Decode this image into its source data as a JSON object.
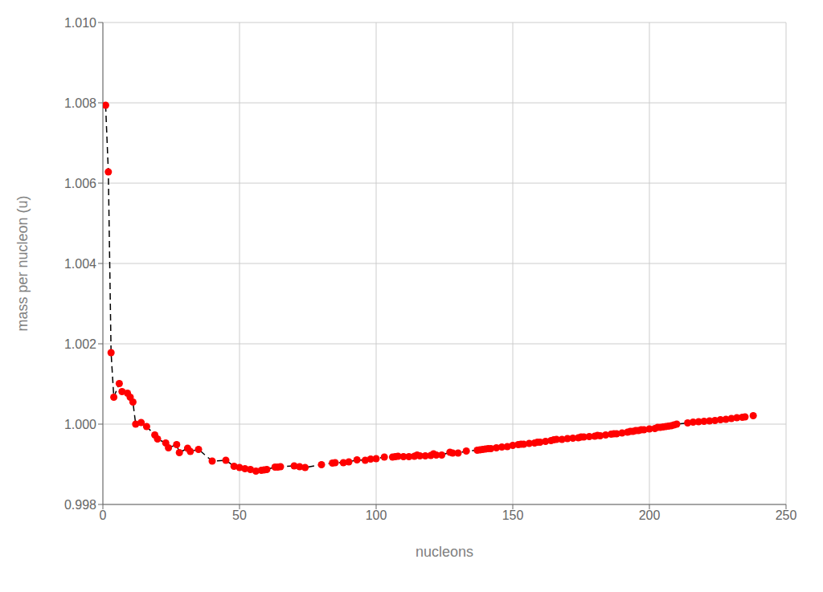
{
  "chart_data": {
    "type": "line",
    "xlabel": "nucleons",
    "ylabel": "mass per nucleon (u)",
    "xlim": [
      0,
      250
    ],
    "ylim": [
      0.998,
      1.01
    ],
    "xticks": [
      0,
      50,
      100,
      150,
      200,
      250
    ],
    "yticks": [
      0.998,
      {
        "value": 1.0,
        "label": "1.000"
      },
      1.002,
      1.004,
      1.006,
      1.008,
      {
        "value": 1.01,
        "label": "1.010"
      }
    ],
    "grid": true,
    "x": [
      1,
      2,
      3,
      4,
      6,
      7,
      9,
      10,
      11,
      12,
      14,
      16,
      19,
      20,
      23,
      24,
      27,
      28,
      31,
      32,
      35,
      40,
      45,
      48,
      50,
      52,
      54,
      56,
      58,
      59,
      60,
      63,
      64,
      65,
      70,
      72,
      74,
      80,
      84,
      85,
      88,
      90,
      93,
      96,
      98,
      100,
      103,
      106,
      107,
      108,
      110,
      112,
      114,
      115,
      116,
      118,
      120,
      121,
      122,
      124,
      127,
      128,
      130,
      133,
      137,
      138,
      139,
      140,
      141,
      142,
      144,
      146,
      148,
      150,
      152,
      153,
      154,
      156,
      158,
      159,
      160,
      162,
      164,
      165,
      166,
      168,
      170,
      172,
      174,
      175,
      176,
      178,
      180,
      181,
      182,
      184,
      186,
      187,
      188,
      190,
      192,
      193,
      194,
      195,
      196,
      197,
      198,
      200,
      202,
      203,
      204,
      205,
      206,
      207,
      208,
      209,
      210,
      214,
      216,
      218,
      220,
      222,
      224,
      226,
      228,
      230,
      232,
      234,
      235,
      238
    ],
    "series": [
      {
        "type": "line",
        "color": "#000000",
        "line_style": "dashed",
        "values": [
          1.00794,
          1.00628,
          1.00178,
          1.00067,
          1.00101,
          1.00081,
          1.00077,
          1.00067,
          1.00055,
          1.0,
          1.00004,
          0.99994,
          0.99973,
          0.99963,
          0.99953,
          0.99941,
          0.99949,
          0.99929,
          0.9994,
          0.99932,
          0.99937,
          0.99908,
          0.9991,
          0.99895,
          0.99892,
          0.99889,
          0.99887,
          0.99883,
          0.99885,
          0.99886,
          0.99887,
          0.99893,
          0.99893,
          0.99894,
          0.99896,
          0.99894,
          0.99892,
          0.99899,
          0.99903,
          0.99904,
          0.99904,
          0.99906,
          0.99911,
          0.9991,
          0.99913,
          0.99914,
          0.99918,
          0.99918,
          0.99919,
          0.9992,
          0.99919,
          0.99919,
          0.9992,
          0.99923,
          0.99921,
          0.99921,
          0.99922,
          0.99926,
          0.99923,
          0.99923,
          0.9993,
          0.99928,
          0.99928,
          0.99933,
          0.99935,
          0.99936,
          0.99937,
          0.99938,
          0.99939,
          0.99939,
          0.99941,
          0.99943,
          0.99944,
          0.99947,
          0.99949,
          0.9995,
          0.9995,
          0.99952,
          0.99953,
          0.99955,
          0.99955,
          0.99957,
          0.99959,
          0.99961,
          0.99962,
          0.99962,
          0.99964,
          0.99965,
          0.99966,
          0.99968,
          0.99968,
          0.99969,
          0.9997,
          0.99972,
          0.99971,
          0.99973,
          0.99975,
          0.99976,
          0.99976,
          0.99978,
          0.9998,
          0.99982,
          0.99982,
          0.99984,
          0.99984,
          0.99986,
          0.99986,
          0.99988,
          0.99989,
          0.99992,
          0.99992,
          0.99993,
          0.99994,
          0.99995,
          0.99996,
          0.99998,
          1.0,
          1.00003,
          1.00005,
          1.00006,
          1.00007,
          1.00008,
          1.00009,
          1.00011,
          1.00012,
          1.00014,
          1.00016,
          1.00017,
          1.00018,
          1.00021
        ]
      },
      {
        "type": "scatter",
        "color": "#ff0000",
        "marker": "circle",
        "values": [
          1.00794,
          1.00628,
          1.00178,
          1.00067,
          1.00101,
          1.00081,
          1.00077,
          1.00067,
          1.00055,
          1.0,
          1.00004,
          0.99994,
          0.99973,
          0.99963,
          0.99953,
          0.99941,
          0.99949,
          0.99929,
          0.9994,
          0.99932,
          0.99937,
          0.99908,
          0.9991,
          0.99895,
          0.99892,
          0.99889,
          0.99887,
          0.99883,
          0.99885,
          0.99886,
          0.99887,
          0.99893,
          0.99893,
          0.99894,
          0.99896,
          0.99894,
          0.99892,
          0.99899,
          0.99903,
          0.99904,
          0.99904,
          0.99906,
          0.99911,
          0.9991,
          0.99913,
          0.99914,
          0.99918,
          0.99918,
          0.99919,
          0.9992,
          0.99919,
          0.99919,
          0.9992,
          0.99923,
          0.99921,
          0.99921,
          0.99922,
          0.99926,
          0.99923,
          0.99923,
          0.9993,
          0.99928,
          0.99928,
          0.99933,
          0.99935,
          0.99936,
          0.99937,
          0.99938,
          0.99939,
          0.99939,
          0.99941,
          0.99943,
          0.99944,
          0.99947,
          0.99949,
          0.9995,
          0.9995,
          0.99952,
          0.99953,
          0.99955,
          0.99955,
          0.99957,
          0.99959,
          0.99961,
          0.99962,
          0.99962,
          0.99964,
          0.99965,
          0.99966,
          0.99968,
          0.99968,
          0.99969,
          0.9997,
          0.99972,
          0.99971,
          0.99973,
          0.99975,
          0.99976,
          0.99976,
          0.99978,
          0.9998,
          0.99982,
          0.99982,
          0.99984,
          0.99984,
          0.99986,
          0.99986,
          0.99988,
          0.99989,
          0.99992,
          0.99992,
          0.99993,
          0.99994,
          0.99995,
          0.99996,
          0.99998,
          1.0,
          1.00003,
          1.00005,
          1.00006,
          1.00007,
          1.00008,
          1.00009,
          1.00011,
          1.00012,
          1.00014,
          1.00016,
          1.00017,
          1.00018,
          1.00021
        ]
      }
    ]
  }
}
